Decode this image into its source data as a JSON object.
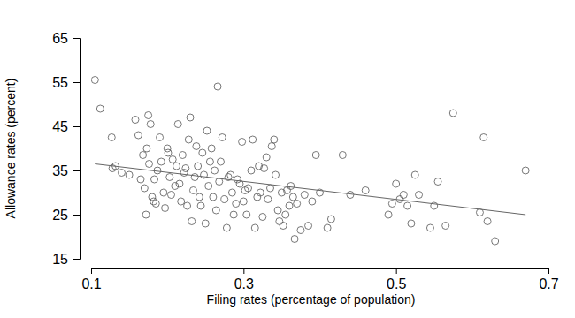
{
  "chart_data": {
    "type": "scatter",
    "x_label": "Filing rates (percentage of population)",
    "y_label": "Allowance rates (percent)",
    "xlim": [
      0.1,
      0.7
    ],
    "ylim": [
      15,
      65
    ],
    "xticks": [
      0.1,
      0.3,
      0.5,
      0.7
    ],
    "yticks": [
      15,
      25,
      35,
      45,
      55,
      65
    ],
    "series": [
      {
        "type": "scatter",
        "marker": "open-circle",
        "color": "#555555",
        "x": [
          0.105,
          0.112,
          0.127,
          0.128,
          0.132,
          0.14,
          0.15,
          0.158,
          0.162,
          0.165,
          0.168,
          0.17,
          0.172,
          0.173,
          0.175,
          0.176,
          0.178,
          0.18,
          0.182,
          0.183,
          0.185,
          0.187,
          0.19,
          0.192,
          0.195,
          0.197,
          0.2,
          0.201,
          0.203,
          0.205,
          0.207,
          0.21,
          0.212,
          0.214,
          0.216,
          0.218,
          0.22,
          0.222,
          0.224,
          0.226,
          0.228,
          0.23,
          0.232,
          0.234,
          0.236,
          0.238,
          0.24,
          0.242,
          0.244,
          0.246,
          0.248,
          0.25,
          0.252,
          0.254,
          0.256,
          0.258,
          0.26,
          0.262,
          0.264,
          0.266,
          0.268,
          0.27,
          0.272,
          0.275,
          0.278,
          0.28,
          0.283,
          0.285,
          0.287,
          0.29,
          0.292,
          0.295,
          0.298,
          0.3,
          0.302,
          0.304,
          0.306,
          0.31,
          0.312,
          0.315,
          0.318,
          0.32,
          0.322,
          0.325,
          0.327,
          0.33,
          0.332,
          0.335,
          0.337,
          0.34,
          0.342,
          0.345,
          0.347,
          0.35,
          0.352,
          0.355,
          0.357,
          0.36,
          0.362,
          0.365,
          0.367,
          0.37,
          0.375,
          0.38,
          0.385,
          0.39,
          0.395,
          0.4,
          0.41,
          0.415,
          0.43,
          0.44,
          0.46,
          0.49,
          0.495,
          0.5,
          0.505,
          0.51,
          0.515,
          0.52,
          0.525,
          0.53,
          0.545,
          0.55,
          0.555,
          0.565,
          0.575,
          0.61,
          0.615,
          0.62,
          0.63,
          0.67
        ],
        "values": [
          55.5,
          49,
          42.5,
          35.5,
          36,
          34.5,
          34,
          46.5,
          43,
          33,
          38.5,
          31,
          25,
          40,
          47.5,
          36.5,
          45.5,
          29,
          28,
          33,
          27.5,
          35,
          42.5,
          37,
          30,
          26.5,
          40,
          39,
          33.5,
          29.5,
          37.5,
          31.5,
          36,
          45.5,
          32,
          28,
          38.5,
          34.5,
          35.5,
          27,
          42,
          47,
          23.5,
          30.5,
          33.5,
          40.5,
          36,
          29,
          27,
          39,
          34,
          23,
          44,
          31.5,
          37,
          40,
          29,
          35,
          26,
          54,
          32.5,
          37,
          42.5,
          28.5,
          22,
          33.5,
          34,
          30,
          25,
          27.5,
          33,
          32,
          41.5,
          28,
          30.5,
          25,
          31,
          35,
          42,
          22,
          29,
          36,
          30,
          24.5,
          35.5,
          38,
          28.5,
          31,
          40.5,
          42,
          34,
          26,
          23.5,
          30,
          22.5,
          25,
          30.5,
          27,
          31.5,
          29,
          19.5,
          27.5,
          21.5,
          29.5,
          22.5,
          28,
          38.5,
          30,
          22,
          24,
          38.5,
          29.5,
          30.5,
          25,
          27.5,
          32,
          28.5,
          29.5,
          27,
          23,
          34,
          29.5,
          22,
          27,
          32.5,
          22.5,
          48,
          25.5,
          42.5,
          23.5,
          19,
          35
        ]
      },
      {
        "type": "line",
        "line_style": "solid",
        "color": "#666666",
        "x": [
          0.105,
          0.67
        ],
        "values": [
          36.5,
          25
        ]
      }
    ]
  }
}
